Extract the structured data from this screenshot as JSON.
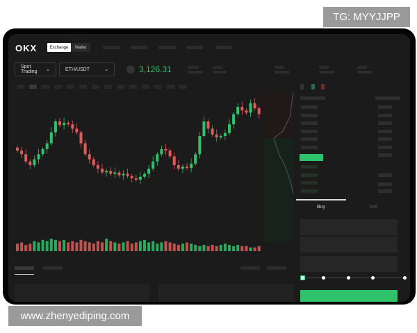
{
  "watermarks": {
    "top_right": "TG: MYYJJPP",
    "bottom_left": "www.zhenyediping.com"
  },
  "header": {
    "logo": "OKX",
    "tabs": [
      {
        "label": "Exchange",
        "active": true
      },
      {
        "label": "Wallet",
        "active": false
      }
    ]
  },
  "toolbar": {
    "trading_mode": "Spot Trading",
    "pair": "ETH/USDT",
    "last_price": "3,126.31"
  },
  "order_form": {
    "tabs": [
      {
        "label": "Buy",
        "active": true
      },
      {
        "label": "Sell",
        "active": false
      }
    ],
    "slider_percent": 0
  },
  "colors": {
    "up": "#2ec26b",
    "down": "#e05a5a",
    "background": "#1b1b1b"
  },
  "chart_data": {
    "type": "candlestick",
    "closes": [
      60,
      55,
      45,
      40,
      48,
      55,
      62,
      70,
      85,
      100,
      95,
      98,
      96,
      90,
      85,
      70,
      55,
      48,
      40,
      35,
      30,
      32,
      28,
      30,
      26,
      28,
      25,
      22,
      20,
      24,
      28,
      35,
      45,
      55,
      62,
      60,
      52,
      40,
      35,
      38,
      36,
      42,
      55,
      80,
      100,
      90,
      82,
      78,
      80,
      84,
      96,
      110,
      120,
      115,
      112,
      125,
      118,
      110
    ],
    "volumes": [
      6,
      7,
      5,
      6,
      8,
      7,
      9,
      8,
      10,
      9,
      8,
      9,
      7,
      8,
      7,
      9,
      8,
      7,
      6,
      8,
      7,
      10,
      8,
      7,
      6,
      7,
      8,
      6,
      7,
      8,
      9,
      7,
      8,
      6,
      7,
      8,
      7,
      6,
      5,
      6,
      7,
      6,
      5,
      4,
      5,
      4,
      5,
      4,
      5,
      6,
      5,
      4,
      5,
      4,
      4,
      3,
      3,
      4
    ]
  }
}
